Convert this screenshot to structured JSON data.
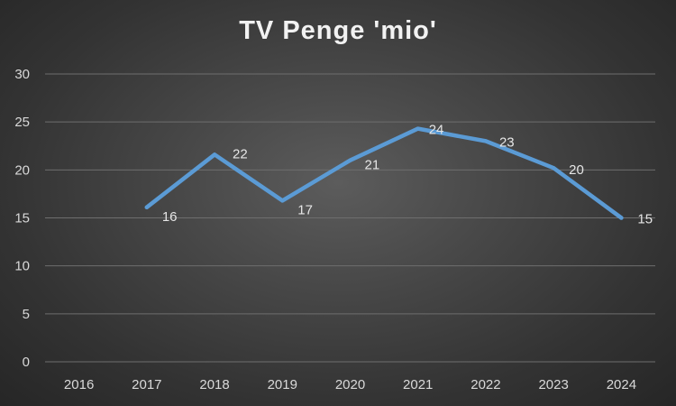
{
  "chart_data": {
    "type": "line",
    "title": "TV Penge 'mio'",
    "categories": [
      "2016",
      "2017",
      "2018",
      "2019",
      "2020",
      "2021",
      "2022",
      "2023",
      "2024"
    ],
    "series": [
      {
        "values": [
          null,
          16.1,
          21.6,
          16.8,
          21.0,
          24.3,
          23.0,
          20.2,
          15.0
        ],
        "labels": [
          "",
          "16",
          "22",
          "17",
          "21",
          "24",
          "23",
          "20",
          "15"
        ]
      }
    ],
    "yticks": [
      "0",
      "5",
      "10",
      "15",
      "20",
      "25",
      "30"
    ],
    "ylim": [
      0,
      30
    ],
    "grid": true,
    "legend": "none",
    "colors": {
      "series": "#5b9bd5",
      "grid": "#6e6e6e",
      "text": "#d9d9d9"
    }
  }
}
